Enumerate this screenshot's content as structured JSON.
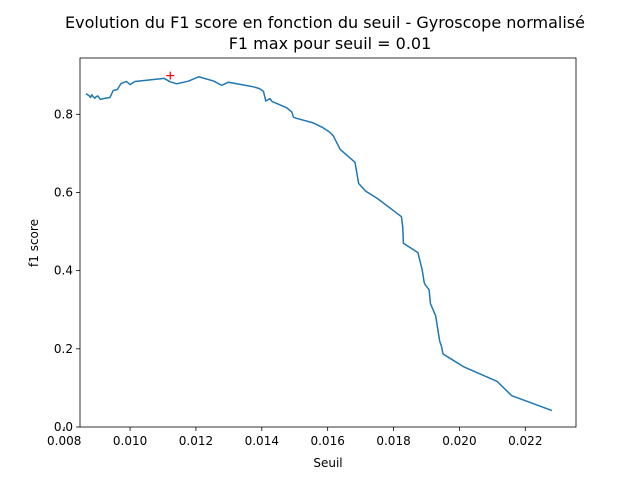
{
  "chart_data": {
    "type": "line",
    "title": "Evolution du F1 score en fonction du seuil - Gyroscope normalisé",
    "subtitle": "F1 max pour seuil = 0.01",
    "xlabel": "Seuil",
    "ylabel": "f1 score",
    "xlim": [
      0.00848,
      0.02354
    ],
    "ylim": [
      0.0,
      0.944
    ],
    "xticks": [
      0.008,
      0.01,
      0.012,
      0.014,
      0.016,
      0.018,
      0.02,
      0.022
    ],
    "xtick_labels": [
      "0.008",
      "0.010",
      "0.012",
      "0.014",
      "0.016",
      "0.018",
      "0.020",
      "0.022"
    ],
    "yticks": [
      0.0,
      0.2,
      0.4,
      0.6,
      0.8
    ],
    "ytick_labels": [
      "0.0",
      "0.2",
      "0.4",
      "0.6",
      "0.8"
    ],
    "grid": false,
    "series": [
      {
        "color": "#1f77b4",
        "x": [
          0.00866,
          0.00875,
          0.0088,
          0.00884,
          0.00888,
          0.00893,
          0.00897,
          0.00902,
          0.0091,
          0.00924,
          0.00939,
          0.00949,
          0.00961,
          0.00973,
          0.00989,
          0.01,
          0.01015,
          0.01103,
          0.01122,
          0.01142,
          0.01178,
          0.01208,
          0.01254,
          0.01278,
          0.01299,
          0.01345,
          0.01376,
          0.01392,
          0.01405,
          0.01412,
          0.01425,
          0.01431,
          0.01475,
          0.01491,
          0.01496,
          0.01504,
          0.01556,
          0.01585,
          0.01605,
          0.01617,
          0.01638,
          0.01683,
          0.01689,
          0.01694,
          0.01716,
          0.01752,
          0.01824,
          0.01828,
          0.0183,
          0.01874,
          0.01887,
          0.01893,
          0.01896,
          0.01908,
          0.01912,
          0.01928,
          0.0194,
          0.01946,
          0.0195,
          0.01969,
          0.02013,
          0.02114,
          0.02159,
          0.02281
        ],
        "y": [
          0.853,
          0.848,
          0.843,
          0.85,
          0.845,
          0.841,
          0.845,
          0.847,
          0.838,
          0.841,
          0.843,
          0.861,
          0.863,
          0.879,
          0.884,
          0.876,
          0.884,
          0.892,
          0.883,
          0.878,
          0.885,
          0.896,
          0.885,
          0.874,
          0.882,
          0.875,
          0.87,
          0.866,
          0.859,
          0.834,
          0.84,
          0.833,
          0.817,
          0.806,
          0.793,
          0.79,
          0.778,
          0.766,
          0.755,
          0.745,
          0.71,
          0.677,
          0.648,
          0.623,
          0.603,
          0.584,
          0.538,
          0.511,
          0.47,
          0.446,
          0.402,
          0.37,
          0.364,
          0.351,
          0.316,
          0.284,
          0.22,
          0.205,
          0.187,
          0.177,
          0.154,
          0.117,
          0.08,
          0.042
        ]
      }
    ],
    "marker": {
      "x": 0.01122,
      "y": 0.899,
      "symbol": "+",
      "color": "#ff0000"
    }
  }
}
